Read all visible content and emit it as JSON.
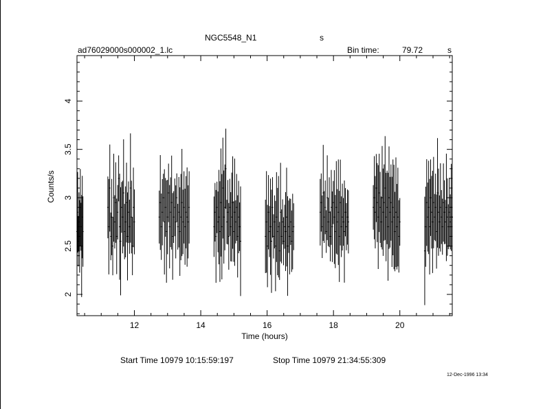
{
  "header": {
    "object_name": "NGC5548_N1",
    "object_suffix": "s",
    "file_name": "ad76029000s000002_1.lc",
    "bin_label": "Bin time:",
    "bin_value": "79.72",
    "bin_unit": "s"
  },
  "footer": {
    "start_time": "Start Time 10979 10:15:59:197",
    "stop_time": "Stop Time 10979 21:34:55:309",
    "plot_date": "12-Dec-1996 13:34"
  },
  "chart_data": {
    "type": "scatter",
    "title": "NGC5548_N1",
    "xlabel": "Time (hours)",
    "ylabel": "Counts/s",
    "xlim": [
      10.27,
      21.58
    ],
    "ylim": [
      1.78,
      4.47
    ],
    "xticks": [
      12,
      14,
      16,
      18,
      20
    ],
    "yticks": [
      2,
      2.5,
      3,
      3.5,
      4
    ],
    "grid": false,
    "segments": [
      {
        "start": 10.27,
        "end": 10.45,
        "values": [
          2.65,
          2.85,
          2.55,
          2.75,
          2.6,
          2.9,
          2.7,
          2.5,
          2.8,
          2.65
        ]
      },
      {
        "start": 11.2,
        "end": 12.0,
        "values": [
          2.9,
          2.7,
          3.1,
          2.6,
          2.8,
          2.5,
          3.0,
          2.75,
          2.95,
          2.6,
          2.85,
          3.2,
          2.7,
          2.55,
          2.9,
          2.8,
          3.05,
          2.65,
          2.75,
          2.95,
          2.6,
          2.85,
          2.7,
          3.1,
          2.8,
          2.5,
          2.9,
          2.75
        ]
      },
      {
        "start": 12.75,
        "end": 13.65,
        "values": [
          2.8,
          2.95,
          2.7,
          2.85,
          3.0,
          2.75,
          2.9,
          2.65,
          2.8,
          3.05,
          2.7,
          2.85,
          2.95,
          2.6,
          2.8,
          2.9,
          2.75,
          3.0,
          2.7,
          2.85,
          2.65,
          2.8,
          2.95,
          2.75,
          2.9,
          2.7,
          2.85,
          2.8,
          2.75,
          2.9
        ]
      },
      {
        "start": 14.4,
        "end": 15.2,
        "values": [
          2.7,
          2.85,
          2.6,
          2.9,
          2.75,
          2.8,
          2.65,
          2.95,
          2.7,
          3.1,
          2.8,
          2.9,
          3.3,
          2.75,
          2.85,
          2.6,
          2.9,
          2.7,
          2.8,
          2.95,
          2.65,
          2.85,
          2.75,
          2.9,
          2.6,
          2.8,
          2.7,
          2.55
        ]
      },
      {
        "start": 15.95,
        "end": 16.8,
        "values": [
          2.6,
          2.75,
          2.5,
          2.85,
          2.65,
          2.7,
          2.55,
          2.9,
          2.6,
          2.75,
          2.5,
          2.8,
          2.65,
          2.7,
          2.45,
          2.85,
          2.6,
          2.75,
          2.55,
          2.7,
          2.65,
          2.8,
          2.5,
          2.7,
          2.6,
          2.75,
          2.55,
          2.65,
          2.7
        ]
      },
      {
        "start": 17.6,
        "end": 18.45,
        "values": [
          2.85,
          2.95,
          2.7,
          3.05,
          2.8,
          2.9,
          2.65,
          3.0,
          2.75,
          2.85,
          2.6,
          2.9,
          2.7,
          2.95,
          2.8,
          2.65,
          2.9,
          2.75,
          2.85,
          2.6,
          2.95,
          2.7,
          2.8,
          2.75,
          2.65,
          2.85,
          2.7,
          2.8,
          2.75
        ]
      },
      {
        "start": 19.2,
        "end": 20.0,
        "values": [
          2.9,
          3.0,
          2.85,
          3.1,
          2.95,
          2.8,
          3.05,
          2.9,
          2.75,
          3.0,
          2.85,
          2.95,
          3.1,
          2.8,
          2.9,
          2.7,
          3.0,
          2.85,
          2.95,
          2.75,
          2.9,
          2.8,
          2.65,
          2.85,
          2.7,
          2.8,
          2.6,
          2.75
        ]
      },
      {
        "start": 20.75,
        "end": 21.58,
        "values": [
          2.45,
          2.7,
          2.95,
          2.8,
          2.9,
          2.7,
          3.0,
          2.85,
          2.75,
          2.95,
          2.8,
          2.9,
          2.65,
          3.05,
          2.85,
          2.75,
          2.9,
          2.8,
          2.7,
          2.95,
          2.85,
          2.75,
          2.9,
          2.8,
          2.7,
          2.85,
          2.75,
          2.9,
          2.8
        ]
      }
    ]
  }
}
